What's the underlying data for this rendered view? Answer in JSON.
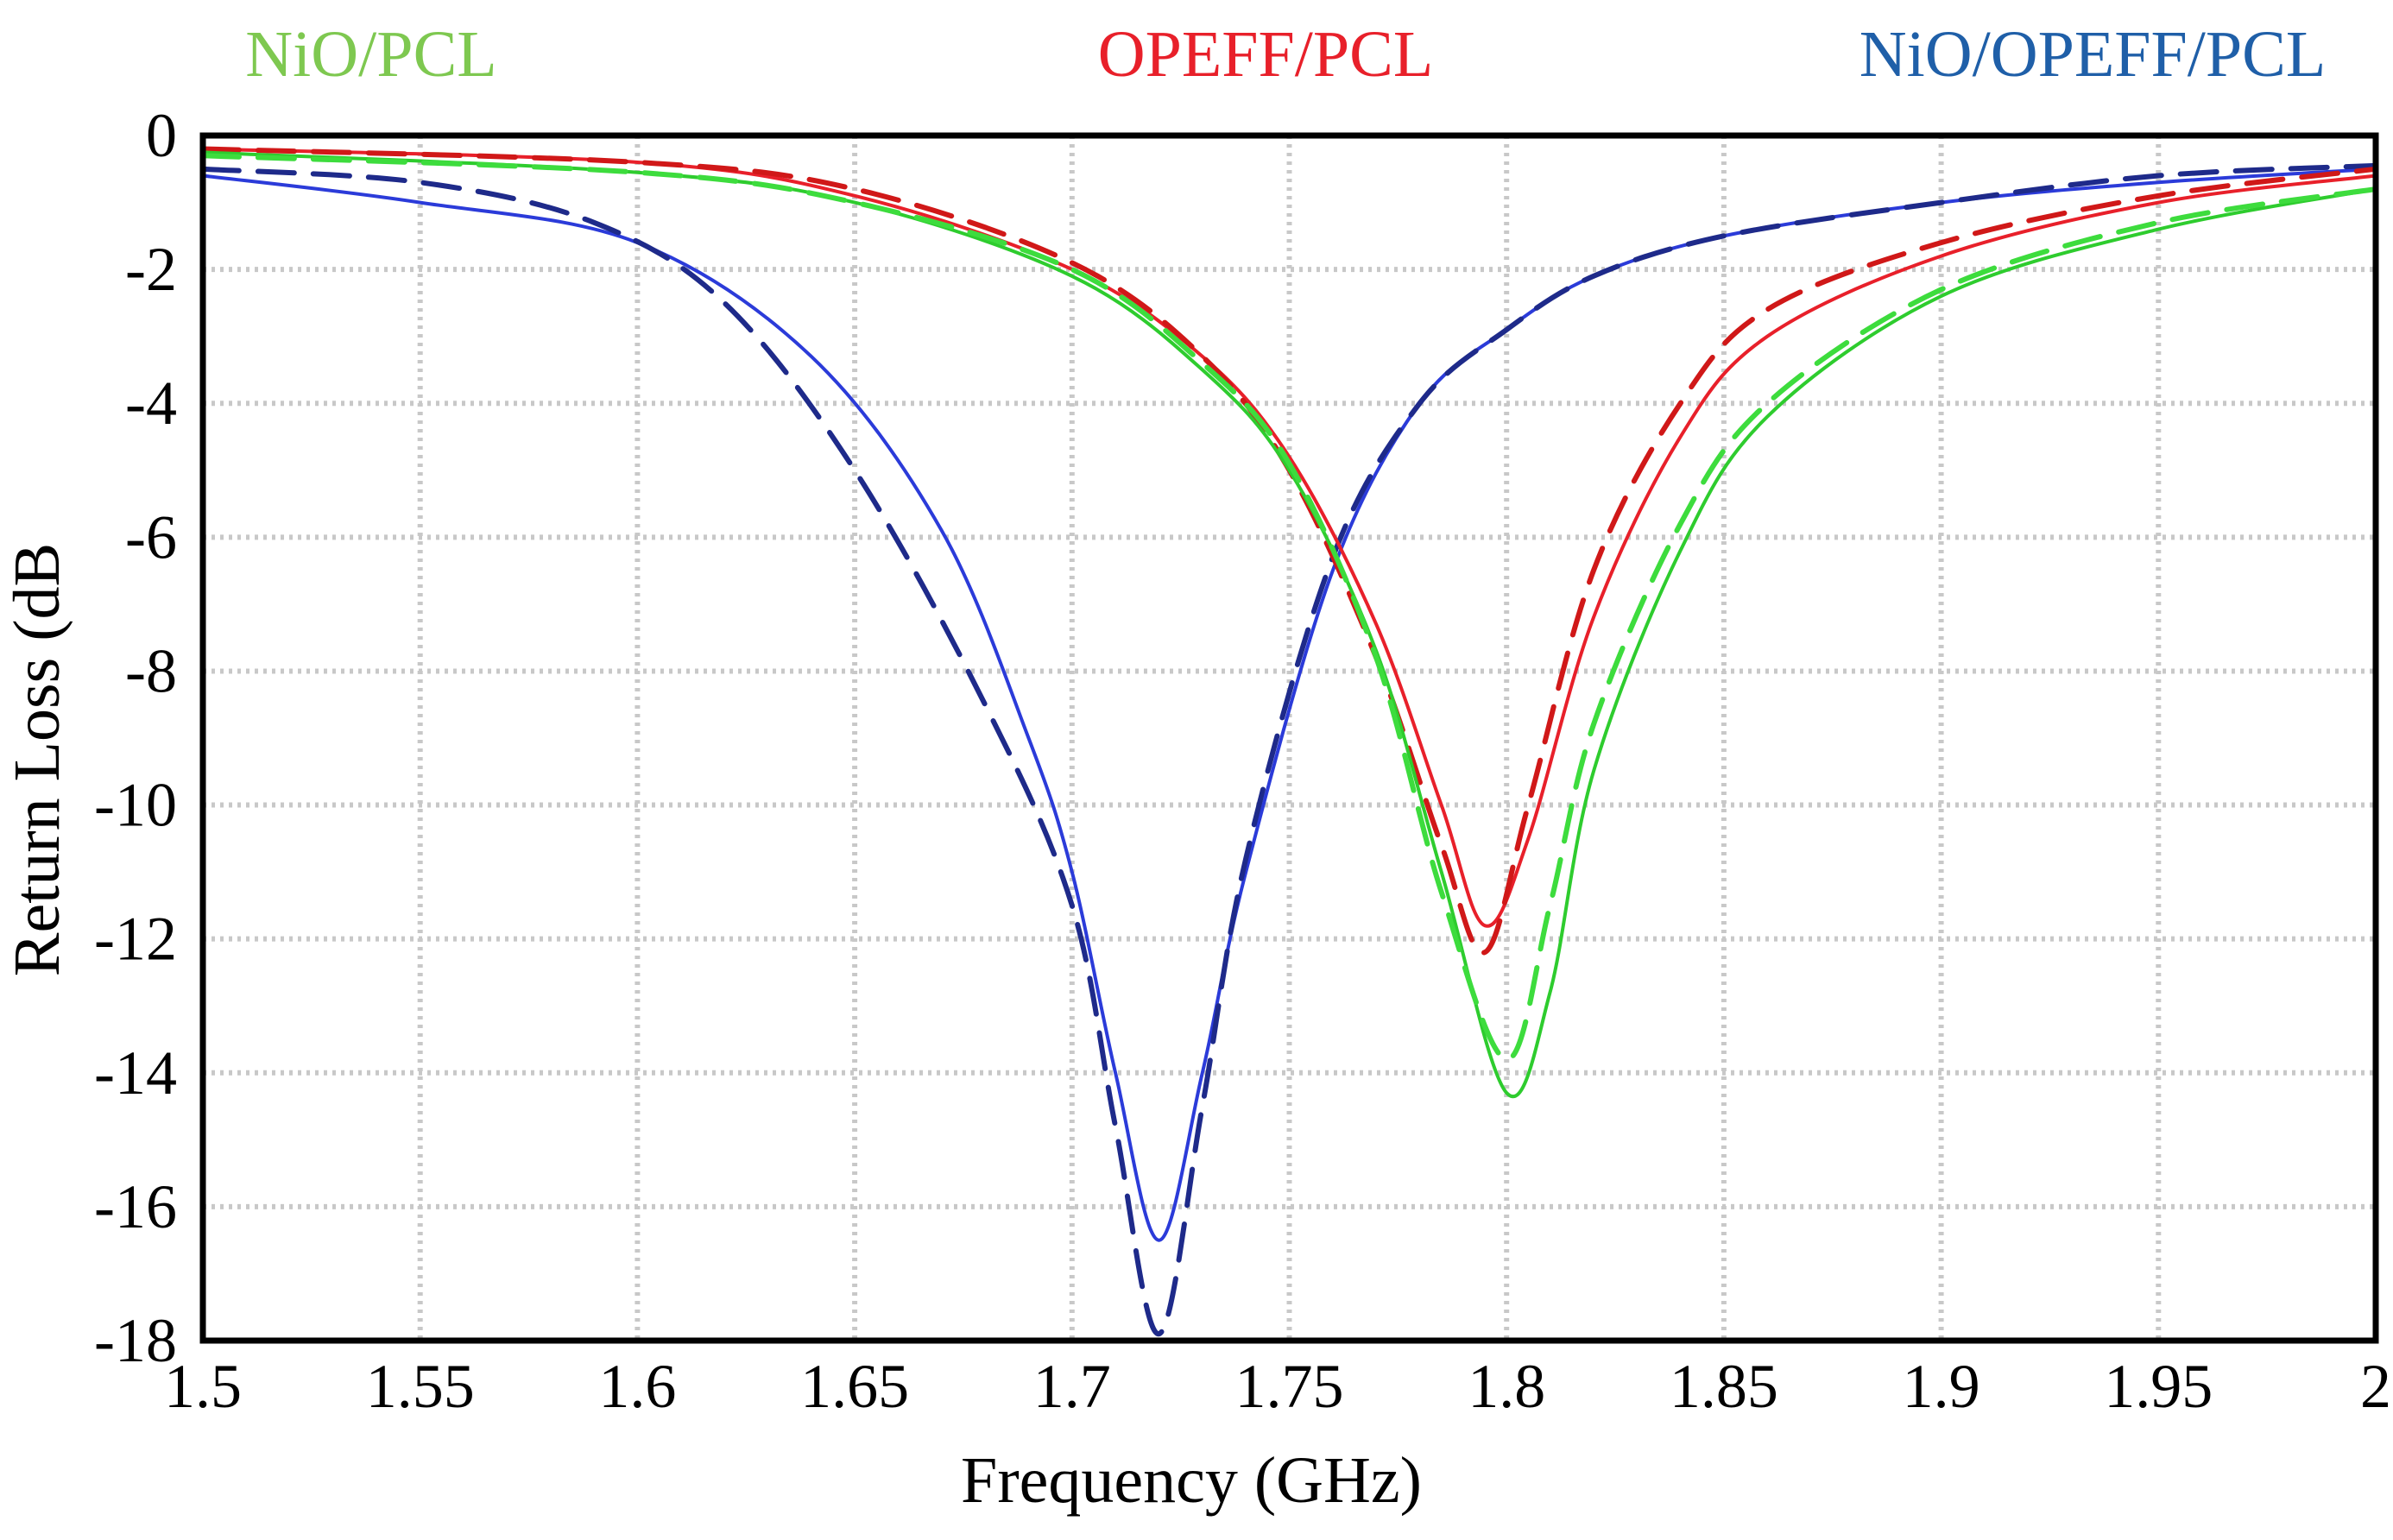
{
  "chart_data": {
    "type": "line",
    "title": "",
    "xlabel": "Frequency (GHz)",
    "ylabel": "Return Loss (dB",
    "xlim": [
      1.5,
      2.0
    ],
    "ylim": [
      -18,
      0
    ],
    "xticks": [
      1.5,
      1.55,
      1.6,
      1.65,
      1.7,
      1.75,
      1.8,
      1.85,
      1.9,
      1.95,
      2.0
    ],
    "xtick_labels": [
      "1.5",
      "1.55",
      "1.6",
      "1.65",
      "1.7",
      "1.75",
      "1.8",
      "1.85",
      "1.9",
      "1.95",
      "2"
    ],
    "yticks": [
      0,
      -2,
      -4,
      -6,
      -8,
      -10,
      -12,
      -14,
      -16,
      -18
    ],
    "ytick_labels": [
      "0",
      "-2",
      "-4",
      "-6",
      "-8",
      "-10",
      "-12",
      "-14",
      "-16",
      "-18"
    ],
    "grid": true,
    "legend": [
      {
        "label": "NiO/PCL",
        "color": "#7ec850",
        "position": "top-left"
      },
      {
        "label": "OPEFF/PCL",
        "color": "#e8202a",
        "position": "top-center"
      },
      {
        "label": "NiO/OPEFF/PCL",
        "color": "#1f5fa8",
        "position": "top-right"
      }
    ],
    "series": [
      {
        "name": "NiO/OPEFF/PCL (solid)",
        "color": "#2b3bd9",
        "dash": "solid",
        "x": [
          1.5,
          1.55,
          1.6,
          1.64,
          1.67,
          1.69,
          1.7,
          1.71,
          1.72,
          1.73,
          1.74,
          1.76,
          1.78,
          1.8,
          1.82,
          1.85,
          1.9,
          1.95,
          2.0
        ],
        "y": [
          -0.6,
          -1.0,
          -1.6,
          -3.3,
          -5.9,
          -9.0,
          -11.0,
          -14.0,
          -16.5,
          -14.0,
          -11.0,
          -6.5,
          -4.0,
          -2.9,
          -2.1,
          -1.5,
          -1.0,
          -0.7,
          -0.5
        ]
      },
      {
        "name": "NiO/OPEFF/PCL (dashed)",
        "color": "#1e2a8a",
        "dash": "dashed",
        "x": [
          1.5,
          1.55,
          1.59,
          1.62,
          1.65,
          1.68,
          1.7,
          1.71,
          1.72,
          1.73,
          1.74,
          1.76,
          1.78,
          1.8,
          1.82,
          1.85,
          1.9,
          1.95,
          2.0
        ],
        "y": [
          -0.5,
          -0.7,
          -1.3,
          -2.5,
          -5.0,
          -8.5,
          -11.5,
          -14.8,
          -17.9,
          -14.5,
          -10.8,
          -6.3,
          -4.0,
          -2.9,
          -2.1,
          -1.5,
          -1.0,
          -0.6,
          -0.45
        ]
      },
      {
        "name": "OPEFF/PCL (solid)",
        "color": "#e8202a",
        "dash": "solid",
        "x": [
          1.5,
          1.6,
          1.65,
          1.7,
          1.73,
          1.75,
          1.77,
          1.785,
          1.795,
          1.805,
          1.82,
          1.84,
          1.86,
          1.9,
          1.95,
          2.0
        ],
        "y": [
          -0.2,
          -0.4,
          -0.9,
          -2.0,
          -3.3,
          -4.8,
          -7.3,
          -10.0,
          -11.8,
          -10.5,
          -7.2,
          -4.5,
          -3.0,
          -1.8,
          -1.0,
          -0.6
        ]
      },
      {
        "name": "OPEFF/PCL (dashed)",
        "color": "#d01818",
        "dash": "dashed",
        "x": [
          1.5,
          1.6,
          1.65,
          1.7,
          1.73,
          1.75,
          1.77,
          1.785,
          1.795,
          1.805,
          1.82,
          1.84,
          1.86,
          1.9,
          1.95,
          2.0
        ],
        "y": [
          -0.2,
          -0.4,
          -0.8,
          -1.9,
          -3.3,
          -5.0,
          -7.8,
          -10.6,
          -12.2,
          -10.0,
          -6.5,
          -4.0,
          -2.6,
          -1.6,
          -0.9,
          -0.5
        ]
      },
      {
        "name": "NiO/PCL (solid)",
        "color": "#2ecc2e",
        "dash": "solid",
        "x": [
          1.5,
          1.6,
          1.65,
          1.7,
          1.73,
          1.75,
          1.77,
          1.785,
          1.8,
          1.81,
          1.82,
          1.84,
          1.86,
          1.9,
          1.95,
          2.0
        ],
        "y": [
          -0.25,
          -0.55,
          -1.0,
          -2.1,
          -3.5,
          -5.0,
          -7.7,
          -11.0,
          -14.3,
          -12.8,
          -9.5,
          -6.2,
          -4.2,
          -2.4,
          -1.4,
          -0.8
        ]
      },
      {
        "name": "NiO/PCL (dashed)",
        "color": "#3ddc3d",
        "dash": "dashed",
        "x": [
          1.5,
          1.6,
          1.65,
          1.7,
          1.73,
          1.75,
          1.77,
          1.785,
          1.8,
          1.81,
          1.82,
          1.84,
          1.86,
          1.9,
          1.95,
          2.0
        ],
        "y": [
          -0.3,
          -0.55,
          -1.0,
          -2.0,
          -3.4,
          -4.9,
          -7.8,
          -11.3,
          -13.8,
          -11.5,
          -8.8,
          -5.8,
          -4.0,
          -2.3,
          -1.3,
          -0.8
        ]
      }
    ]
  }
}
